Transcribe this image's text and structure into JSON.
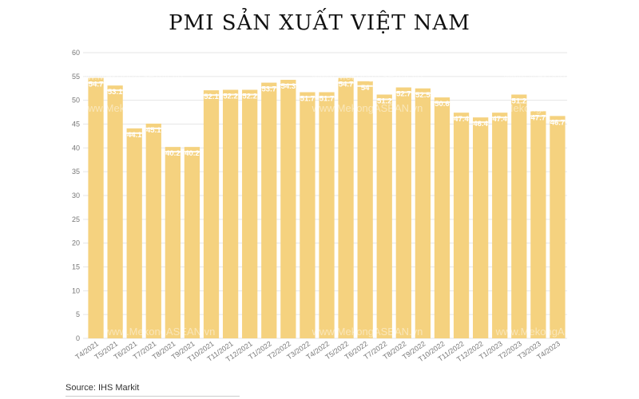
{
  "title": "PMI SẢN XUẤT VIỆT NAM",
  "source": "Source: IHS Markit",
  "watermark": "www.MekongASEAN.vn",
  "colors": {
    "bar": "#f5d27f",
    "bar_cap": "#ffffff",
    "grid": "#e6e6e6",
    "text": "#777777"
  },
  "chart_data": {
    "type": "bar",
    "categories": [
      "T4/2021",
      "T5/2021",
      "T6/2021",
      "T7/2021",
      "T8/2021",
      "T9/2021",
      "T10/2021",
      "T11/2021",
      "T12/2021",
      "T1/2022",
      "T2/2022",
      "T3/2022",
      "T4/2022",
      "T5/2022",
      "T6/2022",
      "T7/2022",
      "T8/2022",
      "T9/2022",
      "T10/2022",
      "T11/2022",
      "T12/2022",
      "T1/2023",
      "T2/2023",
      "T3/2023",
      "T4/2023"
    ],
    "values": [
      54.7,
      53.1,
      44.1,
      45.1,
      40.2,
      40.2,
      52.1,
      52.2,
      52.2,
      53.7,
      54.3,
      51.7,
      51.7,
      54.7,
      54,
      51.2,
      52.7,
      52.5,
      50.6,
      47.4,
      46.4,
      47.4,
      51.2,
      47.7,
      46.7
    ],
    "labels": [
      "54.7",
      "53.1",
      "44.1",
      "45.1",
      "40.2",
      "40.2",
      "52.1",
      "52.2",
      "52.2",
      "53.7",
      "54.3",
      "51.7",
      "51.7",
      "54.7",
      "54",
      "51.2",
      "52.7",
      "52.5",
      "50.6",
      "47.4",
      "46.4",
      "47.4",
      "51.2",
      "47.7",
      "46.7"
    ],
    "yticks": [
      "0",
      "5",
      "10",
      "15",
      "20",
      "25",
      "30",
      "35",
      "40",
      "45",
      "50",
      "55",
      "60"
    ],
    "ylim": [
      0,
      60
    ],
    "grid": true,
    "legend": "none"
  }
}
